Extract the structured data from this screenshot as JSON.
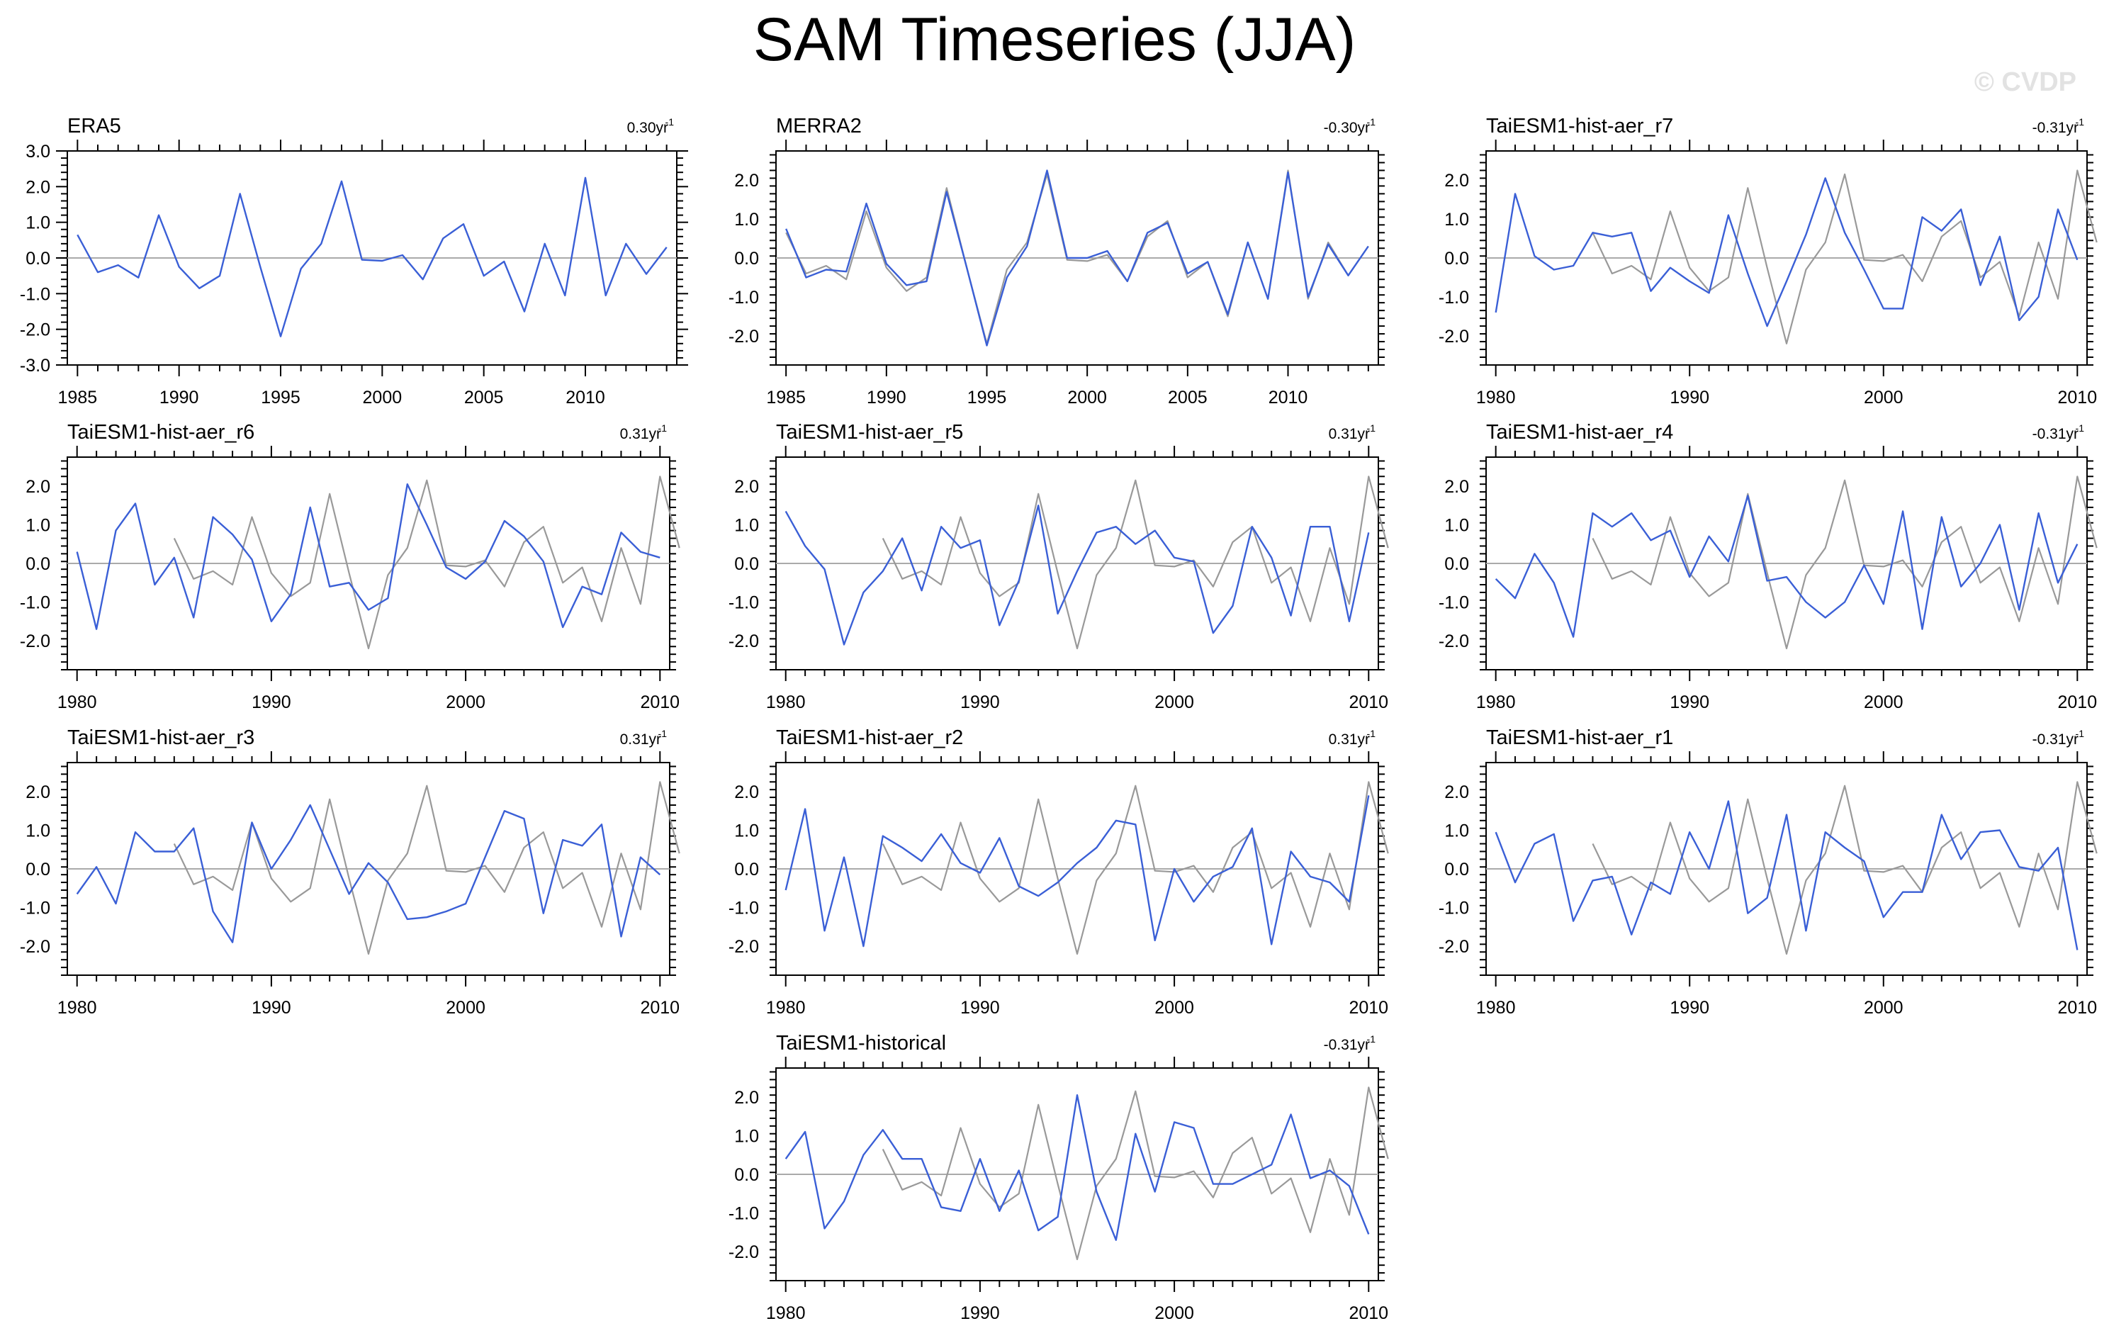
{
  "figure": {
    "title": "SAM Timeseries (JJA)",
    "watermark": "© CVDP"
  },
  "colors": {
    "model_line": "#3a5fd6",
    "obs_line": "#999999",
    "zero_line": "#aaaaaa",
    "axes": "#000000"
  },
  "chart_data": [
    {
      "type": "line",
      "title": "ERA5",
      "trend": "0.30yr",
      "xlim": [
        1984.5,
        2014.5
      ],
      "ylim": [
        -3.0,
        3.0
      ],
      "xticks": [
        1985,
        1990,
        1995,
        2000,
        2005,
        2010
      ],
      "yticks": [
        -3.0,
        -2.0,
        -1.0,
        0.0,
        1.0,
        2.0,
        3.0
      ],
      "series": [
        {
          "name": "ERA5",
          "role": "model",
          "x_start": 1985,
          "values": [
            0.65,
            -0.4,
            -0.2,
            -0.55,
            1.2,
            -0.25,
            -0.85,
            -0.5,
            1.8,
            -0.25,
            -2.2,
            -0.3,
            0.4,
            2.15,
            -0.05,
            -0.08,
            0.08,
            -0.6,
            0.55,
            0.95,
            -0.5,
            -0.1,
            -1.5,
            0.4,
            -1.05,
            2.25,
            -1.05,
            0.4,
            -0.45,
            0.3
          ]
        }
      ]
    },
    {
      "type": "line",
      "title": "MERRA2",
      "trend": "-0.30yr",
      "xlim": [
        1984.5,
        2014.5
      ],
      "ylim": [
        -2.75,
        2.75
      ],
      "xticks": [
        1985,
        1990,
        1995,
        2000,
        2005,
        2010
      ],
      "yticks": [
        -2.0,
        -1.0,
        0.0,
        1.0,
        2.0
      ],
      "series": [
        {
          "name": "ERA5",
          "role": "obs",
          "x_start": 1985,
          "values": [
            0.65,
            -0.4,
            -0.2,
            -0.55,
            1.2,
            -0.25,
            -0.85,
            -0.5,
            1.8,
            -0.25,
            -2.2,
            -0.3,
            0.4,
            2.15,
            -0.05,
            -0.08,
            0.08,
            -0.6,
            0.55,
            0.95,
            -0.5,
            -0.1,
            -1.5,
            0.4,
            -1.05,
            2.25,
            -1.05,
            0.4,
            -0.45,
            0.3
          ]
        },
        {
          "name": "MERRA2",
          "role": "model",
          "x_start": 1985,
          "values": [
            0.75,
            -0.5,
            -0.3,
            -0.35,
            1.4,
            -0.15,
            -0.7,
            -0.6,
            1.7,
            -0.25,
            -2.25,
            -0.5,
            0.3,
            2.25,
            0.0,
            0.0,
            0.18,
            -0.6,
            0.65,
            0.9,
            -0.4,
            -0.1,
            -1.45,
            0.4,
            -1.05,
            2.2,
            -1.0,
            0.35,
            -0.45,
            0.3
          ]
        }
      ]
    },
    {
      "type": "line",
      "title": "TaiESM1-hist-aer_r7",
      "trend": "-0.31yr",
      "xlim": [
        1979.5,
        2010.5
      ],
      "ylim": [
        -2.75,
        2.75
      ],
      "xticks": [
        1980,
        1990,
        2000,
        2010
      ],
      "yticks": [
        -2.0,
        -1.0,
        0.0,
        1.0,
        2.0
      ],
      "series": [
        {
          "name": "ERA5",
          "role": "obs",
          "x_start": 1985,
          "values": [
            0.65,
            -0.4,
            -0.2,
            -0.55,
            1.2,
            -0.25,
            -0.85,
            -0.5,
            1.8,
            -0.25,
            -2.2,
            -0.3,
            0.4,
            2.15,
            -0.05,
            -0.08,
            0.08,
            -0.6,
            0.55,
            0.95,
            -0.5,
            -0.1,
            -1.5,
            0.4,
            -1.05,
            2.25,
            0.4
          ]
        },
        {
          "name": "TaiESM1-hist-aer_r7",
          "role": "model",
          "x_start": 1980,
          "values": [
            -1.4,
            1.65,
            0.05,
            -0.3,
            -0.2,
            0.65,
            0.55,
            0.65,
            -0.85,
            -0.25,
            -0.6,
            -0.9,
            1.1,
            -0.4,
            -1.75,
            -0.6,
            0.6,
            2.05,
            0.65,
            -0.3,
            -1.3,
            -1.3,
            1.05,
            0.7,
            1.25,
            -0.7,
            0.55,
            -1.6,
            -1.0,
            1.25,
            -0.05
          ]
        }
      ]
    },
    {
      "type": "line",
      "title": "TaiESM1-hist-aer_r6",
      "trend": "0.31yr",
      "xlim": [
        1979.5,
        2010.5
      ],
      "ylim": [
        -2.75,
        2.75
      ],
      "xticks": [
        1980,
        1990,
        2000,
        2010
      ],
      "yticks": [
        -2.0,
        -1.0,
        0.0,
        1.0,
        2.0
      ],
      "series": [
        {
          "name": "ERA5",
          "role": "obs",
          "x_start": 1985,
          "values": [
            0.65,
            -0.4,
            -0.2,
            -0.55,
            1.2,
            -0.25,
            -0.85,
            -0.5,
            1.8,
            -0.25,
            -2.2,
            -0.3,
            0.4,
            2.15,
            -0.05,
            -0.08,
            0.08,
            -0.6,
            0.55,
            0.95,
            -0.5,
            -0.1,
            -1.5,
            0.4,
            -1.05,
            2.25,
            0.4
          ]
        },
        {
          "name": "TaiESM1-hist-aer_r6",
          "role": "model",
          "x_start": 1980,
          "values": [
            0.3,
            -1.7,
            0.85,
            1.55,
            -0.55,
            0.15,
            -1.4,
            1.2,
            0.75,
            0.1,
            -1.5,
            -0.8,
            1.45,
            -0.6,
            -0.5,
            -1.2,
            -0.9,
            2.05,
            1.0,
            -0.1,
            -0.4,
            0.05,
            1.1,
            0.7,
            0.05,
            -1.65,
            -0.6,
            -0.8,
            0.8,
            0.3,
            0.15
          ]
        }
      ]
    },
    {
      "type": "line",
      "title": "TaiESM1-hist-aer_r5",
      "trend": "0.31yr",
      "xlim": [
        1979.5,
        2010.5
      ],
      "ylim": [
        -2.75,
        2.75
      ],
      "xticks": [
        1980,
        1990,
        2000,
        2010
      ],
      "yticks": [
        -2.0,
        -1.0,
        0.0,
        1.0,
        2.0
      ],
      "series": [
        {
          "name": "ERA5",
          "role": "obs",
          "x_start": 1985,
          "values": [
            0.65,
            -0.4,
            -0.2,
            -0.55,
            1.2,
            -0.25,
            -0.85,
            -0.5,
            1.8,
            -0.25,
            -2.2,
            -0.3,
            0.4,
            2.15,
            -0.05,
            -0.08,
            0.08,
            -0.6,
            0.55,
            0.95,
            -0.5,
            -0.1,
            -1.5,
            0.4,
            -1.05,
            2.25,
            0.4
          ]
        },
        {
          "name": "TaiESM1-hist-aer_r5",
          "role": "model",
          "x_start": 1980,
          "values": [
            1.35,
            0.45,
            -0.15,
            -2.1,
            -0.75,
            -0.2,
            0.65,
            -0.7,
            0.95,
            0.4,
            0.6,
            -1.6,
            -0.45,
            1.5,
            -1.3,
            -0.2,
            0.8,
            0.95,
            0.5,
            0.85,
            0.15,
            0.05,
            -1.8,
            -1.1,
            0.95,
            0.15,
            -1.35,
            0.95,
            0.95,
            -1.5,
            0.8
          ]
        }
      ]
    },
    {
      "type": "line",
      "title": "TaiESM1-hist-aer_r4",
      "trend": "-0.31yr",
      "xlim": [
        1979.5,
        2010.5
      ],
      "ylim": [
        -2.75,
        2.75
      ],
      "xticks": [
        1980,
        1990,
        2000,
        2010
      ],
      "yticks": [
        -2.0,
        -1.0,
        0.0,
        1.0,
        2.0
      ],
      "series": [
        {
          "name": "ERA5",
          "role": "obs",
          "x_start": 1985,
          "values": [
            0.65,
            -0.4,
            -0.2,
            -0.55,
            1.2,
            -0.25,
            -0.85,
            -0.5,
            1.8,
            -0.25,
            -2.2,
            -0.3,
            0.4,
            2.15,
            -0.05,
            -0.08,
            0.08,
            -0.6,
            0.55,
            0.95,
            -0.5,
            -0.1,
            -1.5,
            0.4,
            -1.05,
            2.25,
            0.4
          ]
        },
        {
          "name": "TaiESM1-hist-aer_r4",
          "role": "model",
          "x_start": 1980,
          "values": [
            -0.4,
            -0.9,
            0.25,
            -0.5,
            -1.9,
            1.3,
            0.95,
            1.3,
            0.6,
            0.85,
            -0.35,
            0.7,
            0.05,
            1.75,
            -0.45,
            -0.35,
            -1.0,
            -1.4,
            -1.0,
            -0.05,
            -1.05,
            1.35,
            -1.7,
            1.2,
            -0.6,
            0.0,
            1.0,
            -1.2,
            1.3,
            -0.5,
            0.5
          ]
        }
      ]
    },
    {
      "type": "line",
      "title": "TaiESM1-hist-aer_r3",
      "trend": "0.31yr",
      "xlim": [
        1979.5,
        2010.5
      ],
      "ylim": [
        -2.75,
        2.75
      ],
      "xticks": [
        1980,
        1990,
        2000,
        2010
      ],
      "yticks": [
        -2.0,
        -1.0,
        0.0,
        1.0,
        2.0
      ],
      "series": [
        {
          "name": "ERA5",
          "role": "obs",
          "x_start": 1985,
          "values": [
            0.65,
            -0.4,
            -0.2,
            -0.55,
            1.2,
            -0.25,
            -0.85,
            -0.5,
            1.8,
            -0.25,
            -2.2,
            -0.3,
            0.4,
            2.15,
            -0.05,
            -0.08,
            0.08,
            -0.6,
            0.55,
            0.95,
            -0.5,
            -0.1,
            -1.5,
            0.4,
            -1.05,
            2.25,
            0.4
          ]
        },
        {
          "name": "TaiESM1-hist-aer_r3",
          "role": "model",
          "x_start": 1980,
          "values": [
            -0.65,
            0.05,
            -0.9,
            0.95,
            0.45,
            0.45,
            1.05,
            -1.1,
            -1.9,
            1.2,
            0.0,
            0.75,
            1.65,
            0.5,
            -0.65,
            0.15,
            -0.35,
            -1.3,
            -1.25,
            -1.1,
            -0.9,
            0.3,
            1.5,
            1.3,
            -1.15,
            0.75,
            0.6,
            1.15,
            -1.75,
            0.3,
            -0.15
          ]
        }
      ]
    },
    {
      "type": "line",
      "title": "TaiESM1-hist-aer_r2",
      "trend": "0.31yr",
      "xlim": [
        1979.5,
        2010.5
      ],
      "ylim": [
        -2.75,
        2.75
      ],
      "xticks": [
        1980,
        1990,
        2000,
        2010
      ],
      "yticks": [
        -2.0,
        -1.0,
        0.0,
        1.0,
        2.0
      ],
      "series": [
        {
          "name": "ERA5",
          "role": "obs",
          "x_start": 1985,
          "values": [
            0.65,
            -0.4,
            -0.2,
            -0.55,
            1.2,
            -0.25,
            -0.85,
            -0.5,
            1.8,
            -0.25,
            -2.2,
            -0.3,
            0.4,
            2.15,
            -0.05,
            -0.08,
            0.08,
            -0.6,
            0.55,
            0.95,
            -0.5,
            -0.1,
            -1.5,
            0.4,
            -1.05,
            2.25,
            0.4
          ]
        },
        {
          "name": "TaiESM1-hist-aer_r2",
          "role": "model",
          "x_start": 1980,
          "values": [
            -0.55,
            1.55,
            -1.6,
            0.3,
            -2.0,
            0.85,
            0.55,
            0.2,
            0.9,
            0.15,
            -0.1,
            0.8,
            -0.45,
            -0.7,
            -0.35,
            0.15,
            0.55,
            1.25,
            1.15,
            -1.85,
            0.0,
            -0.85,
            -0.2,
            0.05,
            1.05,
            -1.95,
            0.45,
            -0.2,
            -0.35,
            -0.85,
            1.9
          ]
        }
      ]
    },
    {
      "type": "line",
      "title": "TaiESM1-hist-aer_r1",
      "trend": "-0.31yr",
      "xlim": [
        1979.5,
        2010.5
      ],
      "ylim": [
        -2.75,
        2.75
      ],
      "xticks": [
        1980,
        1990,
        2000,
        2010
      ],
      "yticks": [
        -2.0,
        -1.0,
        0.0,
        1.0,
        2.0
      ],
      "series": [
        {
          "name": "ERA5",
          "role": "obs",
          "x_start": 1985,
          "values": [
            0.65,
            -0.4,
            -0.2,
            -0.55,
            1.2,
            -0.25,
            -0.85,
            -0.5,
            1.8,
            -0.25,
            -2.2,
            -0.3,
            0.4,
            2.15,
            -0.05,
            -0.08,
            0.08,
            -0.6,
            0.55,
            0.95,
            -0.5,
            -0.1,
            -1.5,
            0.4,
            -1.05,
            2.25,
            0.4
          ]
        },
        {
          "name": "TaiESM1-hist-aer_r1",
          "role": "model",
          "x_start": 1980,
          "values": [
            0.95,
            -0.35,
            0.65,
            0.9,
            -1.35,
            -0.3,
            -0.2,
            -1.7,
            -0.35,
            -0.65,
            0.95,
            0.0,
            1.75,
            -1.15,
            -0.75,
            1.4,
            -1.6,
            0.95,
            0.55,
            0.2,
            -1.25,
            -0.6,
            -0.6,
            1.4,
            0.25,
            0.95,
            1.0,
            0.05,
            -0.05,
            0.55,
            -2.1
          ]
        }
      ]
    },
    {
      "type": "line",
      "title": "TaiESM1-historical",
      "trend": "-0.31yr",
      "xlim": [
        1979.5,
        2010.5
      ],
      "ylim": [
        -2.75,
        2.75
      ],
      "xticks": [
        1980,
        1990,
        2000,
        2010
      ],
      "yticks": [
        -2.0,
        -1.0,
        0.0,
        1.0,
        2.0
      ],
      "series": [
        {
          "name": "ERA5",
          "role": "obs",
          "x_start": 1985,
          "values": [
            0.65,
            -0.4,
            -0.2,
            -0.55,
            1.2,
            -0.25,
            -0.85,
            -0.5,
            1.8,
            -0.25,
            -2.2,
            -0.3,
            0.4,
            2.15,
            -0.05,
            -0.08,
            0.08,
            -0.6,
            0.55,
            0.95,
            -0.5,
            -0.1,
            -1.5,
            0.4,
            -1.05,
            2.25,
            0.4
          ]
        },
        {
          "name": "TaiESM1-historical",
          "role": "model",
          "x_start": 1980,
          "values": [
            0.4,
            1.1,
            -1.4,
            -0.7,
            0.5,
            1.15,
            0.4,
            0.4,
            -0.85,
            -0.95,
            0.4,
            -0.95,
            0.1,
            -1.45,
            -1.1,
            2.05,
            -0.45,
            -1.7,
            1.05,
            -0.45,
            1.35,
            1.2,
            -0.25,
            -0.25,
            0.0,
            0.25,
            1.55,
            -0.1,
            0.1,
            -0.3,
            -1.55
          ]
        }
      ]
    }
  ]
}
